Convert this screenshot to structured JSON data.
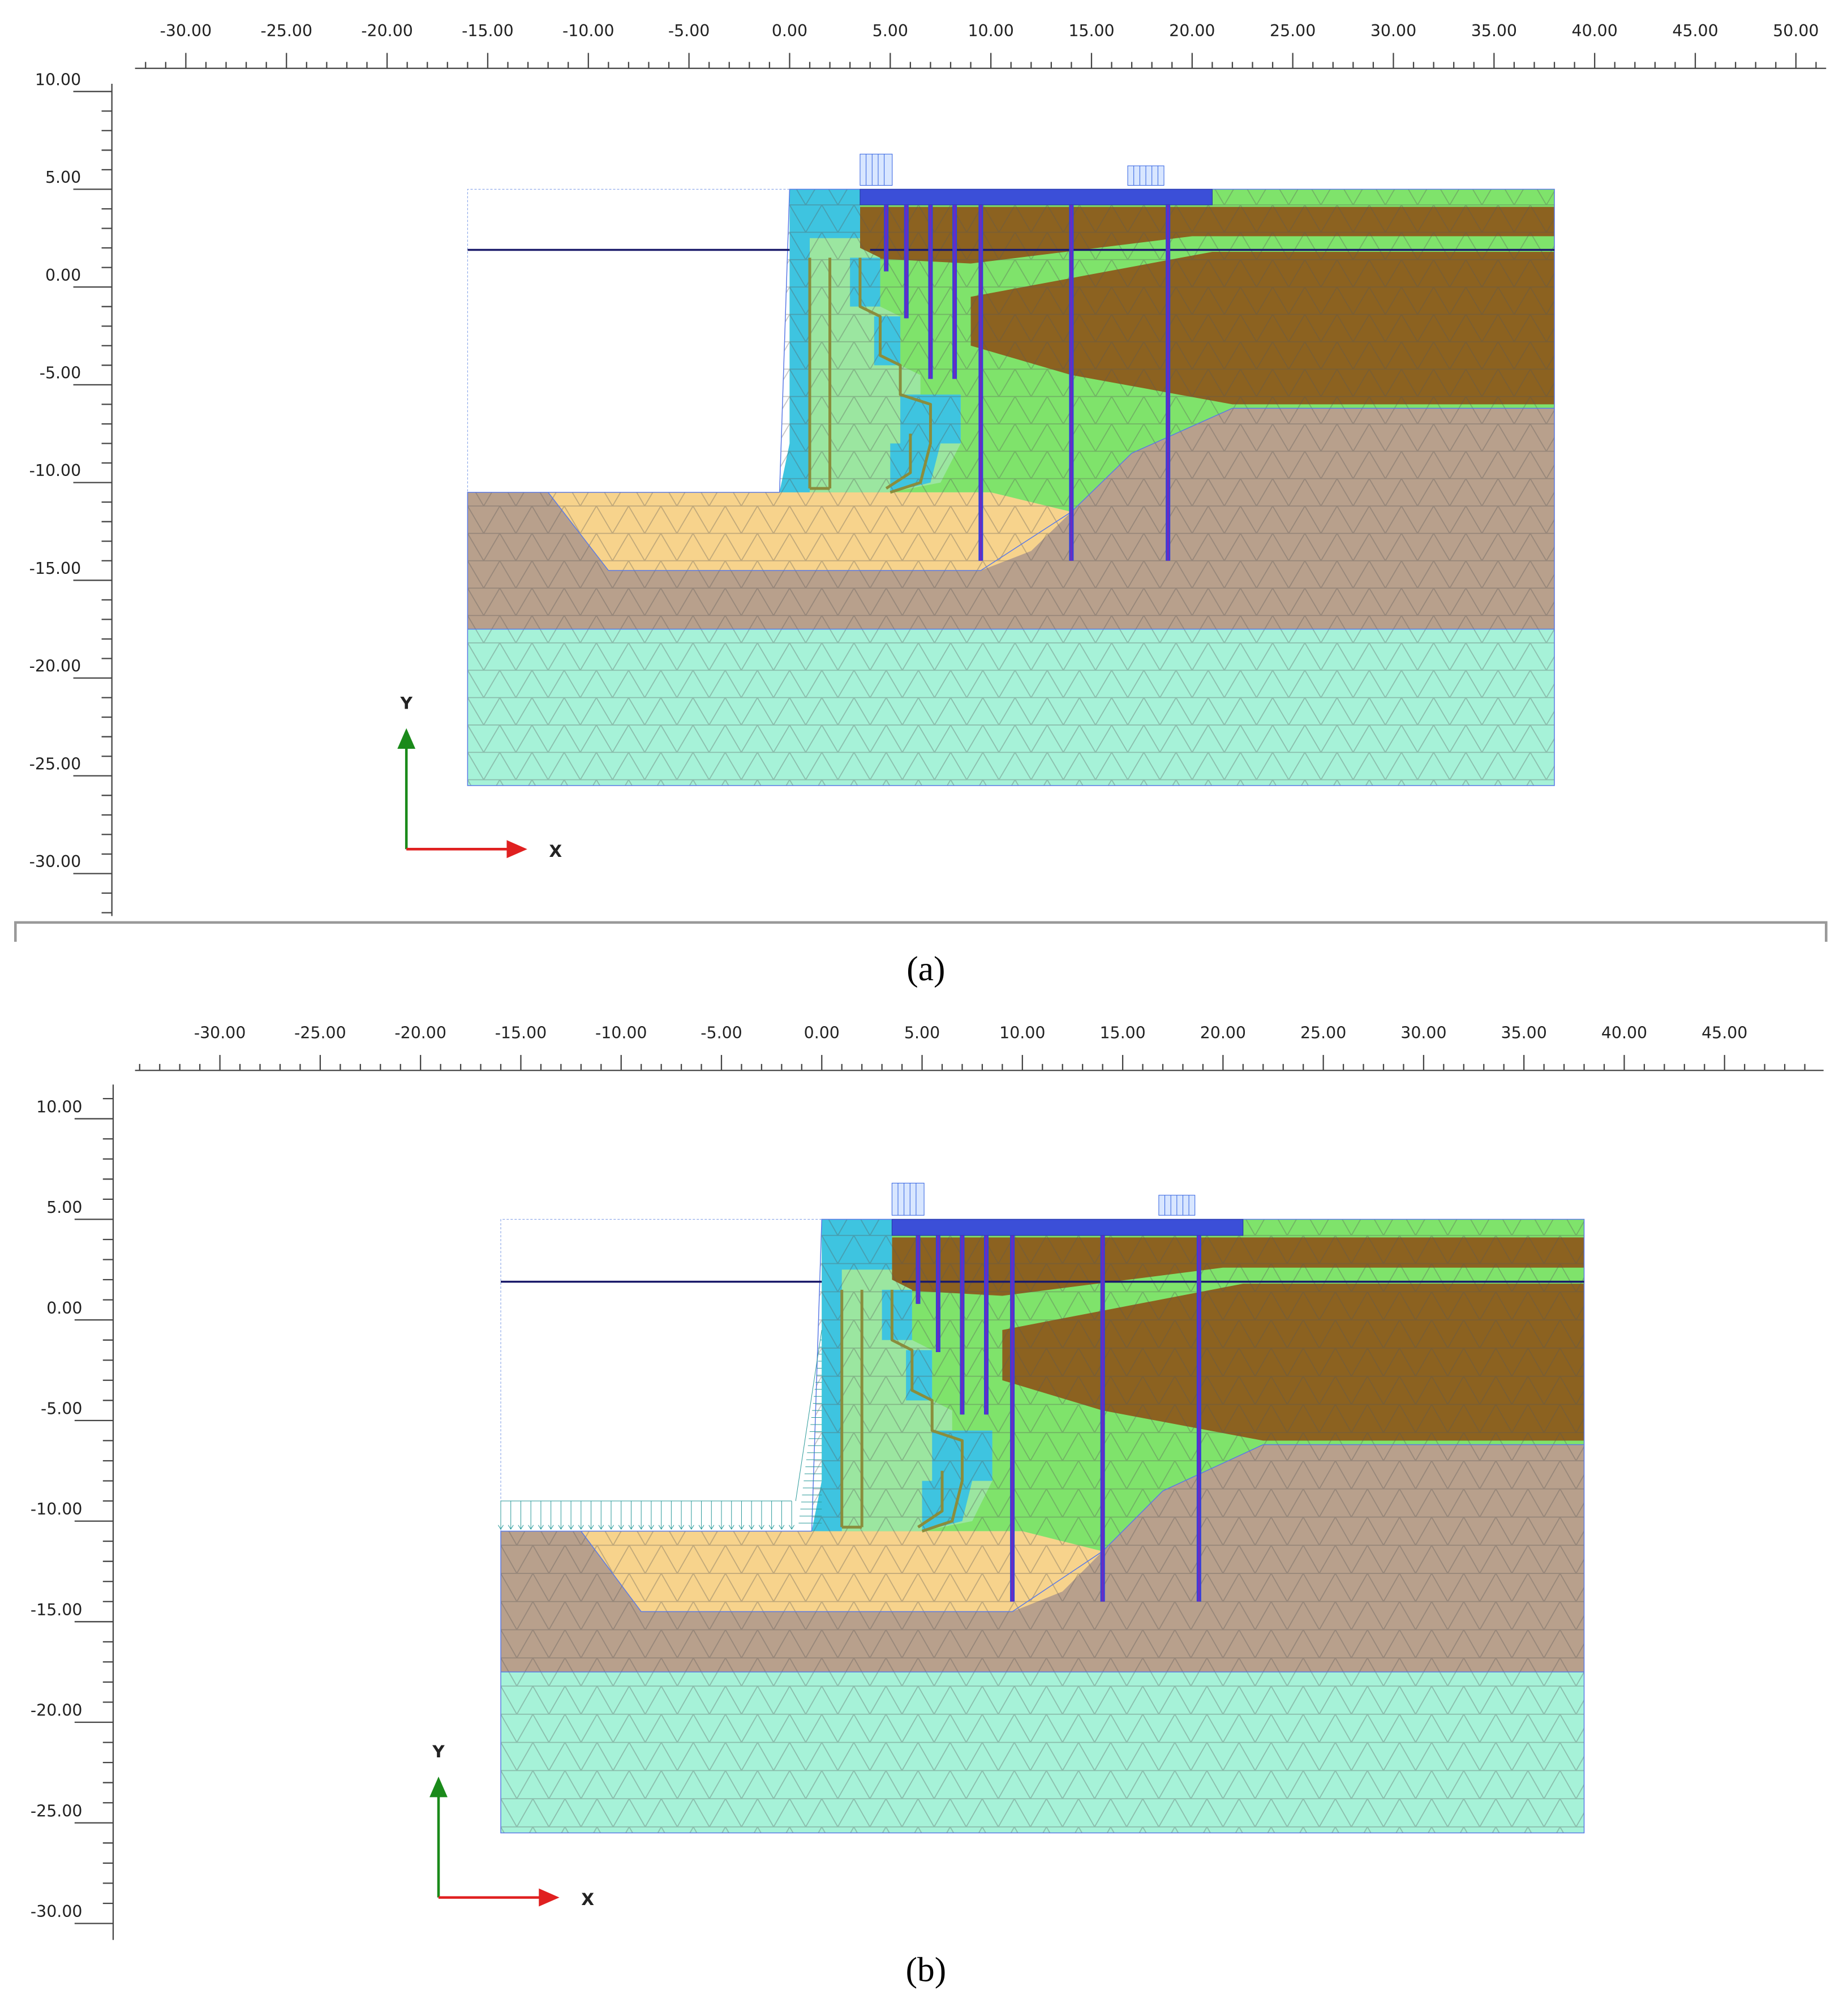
{
  "panels": [
    {
      "caption": "(a)",
      "axes": {
        "y": "Y",
        "x": "X"
      },
      "xticks": [
        {
          "value": -30,
          "label": "-30.00"
        },
        {
          "value": -25,
          "label": "-25.00"
        },
        {
          "value": -20,
          "label": "-20.00"
        },
        {
          "value": -15,
          "label": "-15.00"
        },
        {
          "value": -10,
          "label": "-10.00"
        },
        {
          "value": -5,
          "label": "-5.00"
        },
        {
          "value": 0,
          "label": "0.00"
        },
        {
          "value": 5,
          "label": "5.00"
        },
        {
          "value": 10,
          "label": "10.00"
        },
        {
          "value": 15,
          "label": "15.00"
        },
        {
          "value": 20,
          "label": "20.00"
        },
        {
          "value": 25,
          "label": "25.00"
        },
        {
          "value": 30,
          "label": "30.00"
        },
        {
          "value": 35,
          "label": "35.00"
        },
        {
          "value": 40,
          "label": "40.00"
        },
        {
          "value": 45,
          "label": "45.00"
        },
        {
          "value": 50,
          "label": "50.00"
        }
      ],
      "yticks": [
        {
          "value": 10,
          "label": "10.00"
        },
        {
          "value": 5,
          "label": "5.00"
        },
        {
          "value": 0,
          "label": "0.00"
        },
        {
          "value": -5,
          "label": "-5.00"
        },
        {
          "value": -10,
          "label": "-10.00"
        },
        {
          "value": -15,
          "label": "-15.00"
        },
        {
          "value": -20,
          "label": "-20.00"
        },
        {
          "value": -25,
          "label": "-25.00"
        },
        {
          "value": -30,
          "label": "-30.00"
        }
      ]
    },
    {
      "caption": "(b)",
      "axes": {
        "y": "Y",
        "x": "X"
      },
      "xticks": [
        {
          "value": -30,
          "label": "-30.00"
        },
        {
          "value": -25,
          "label": "-25.00"
        },
        {
          "value": -20,
          "label": "-20.00"
        },
        {
          "value": -15,
          "label": "-15.00"
        },
        {
          "value": -10,
          "label": "-10.00"
        },
        {
          "value": -5,
          "label": "-5.00"
        },
        {
          "value": 0,
          "label": "0.00"
        },
        {
          "value": 5,
          "label": "5.00"
        },
        {
          "value": 10,
          "label": "10.00"
        },
        {
          "value": 15,
          "label": "15.00"
        },
        {
          "value": 20,
          "label": "20.00"
        },
        {
          "value": 25,
          "label": "25.00"
        },
        {
          "value": 30,
          "label": "30.00"
        },
        {
          "value": 35,
          "label": "35.00"
        },
        {
          "value": 40,
          "label": "40.00"
        },
        {
          "value": 45,
          "label": "45.00"
        }
      ],
      "yticks": [
        {
          "value": 10,
          "label": "10.00"
        },
        {
          "value": 5,
          "label": "5.00"
        },
        {
          "value": 0,
          "label": "0.00"
        },
        {
          "value": -5,
          "label": "-5.00"
        },
        {
          "value": -10,
          "label": "-10.00"
        },
        {
          "value": -15,
          "label": "-15.00"
        },
        {
          "value": -20,
          "label": "-20.00"
        },
        {
          "value": -25,
          "label": "-25.00"
        },
        {
          "value": -30,
          "label": "-30.00"
        }
      ]
    }
  ]
}
